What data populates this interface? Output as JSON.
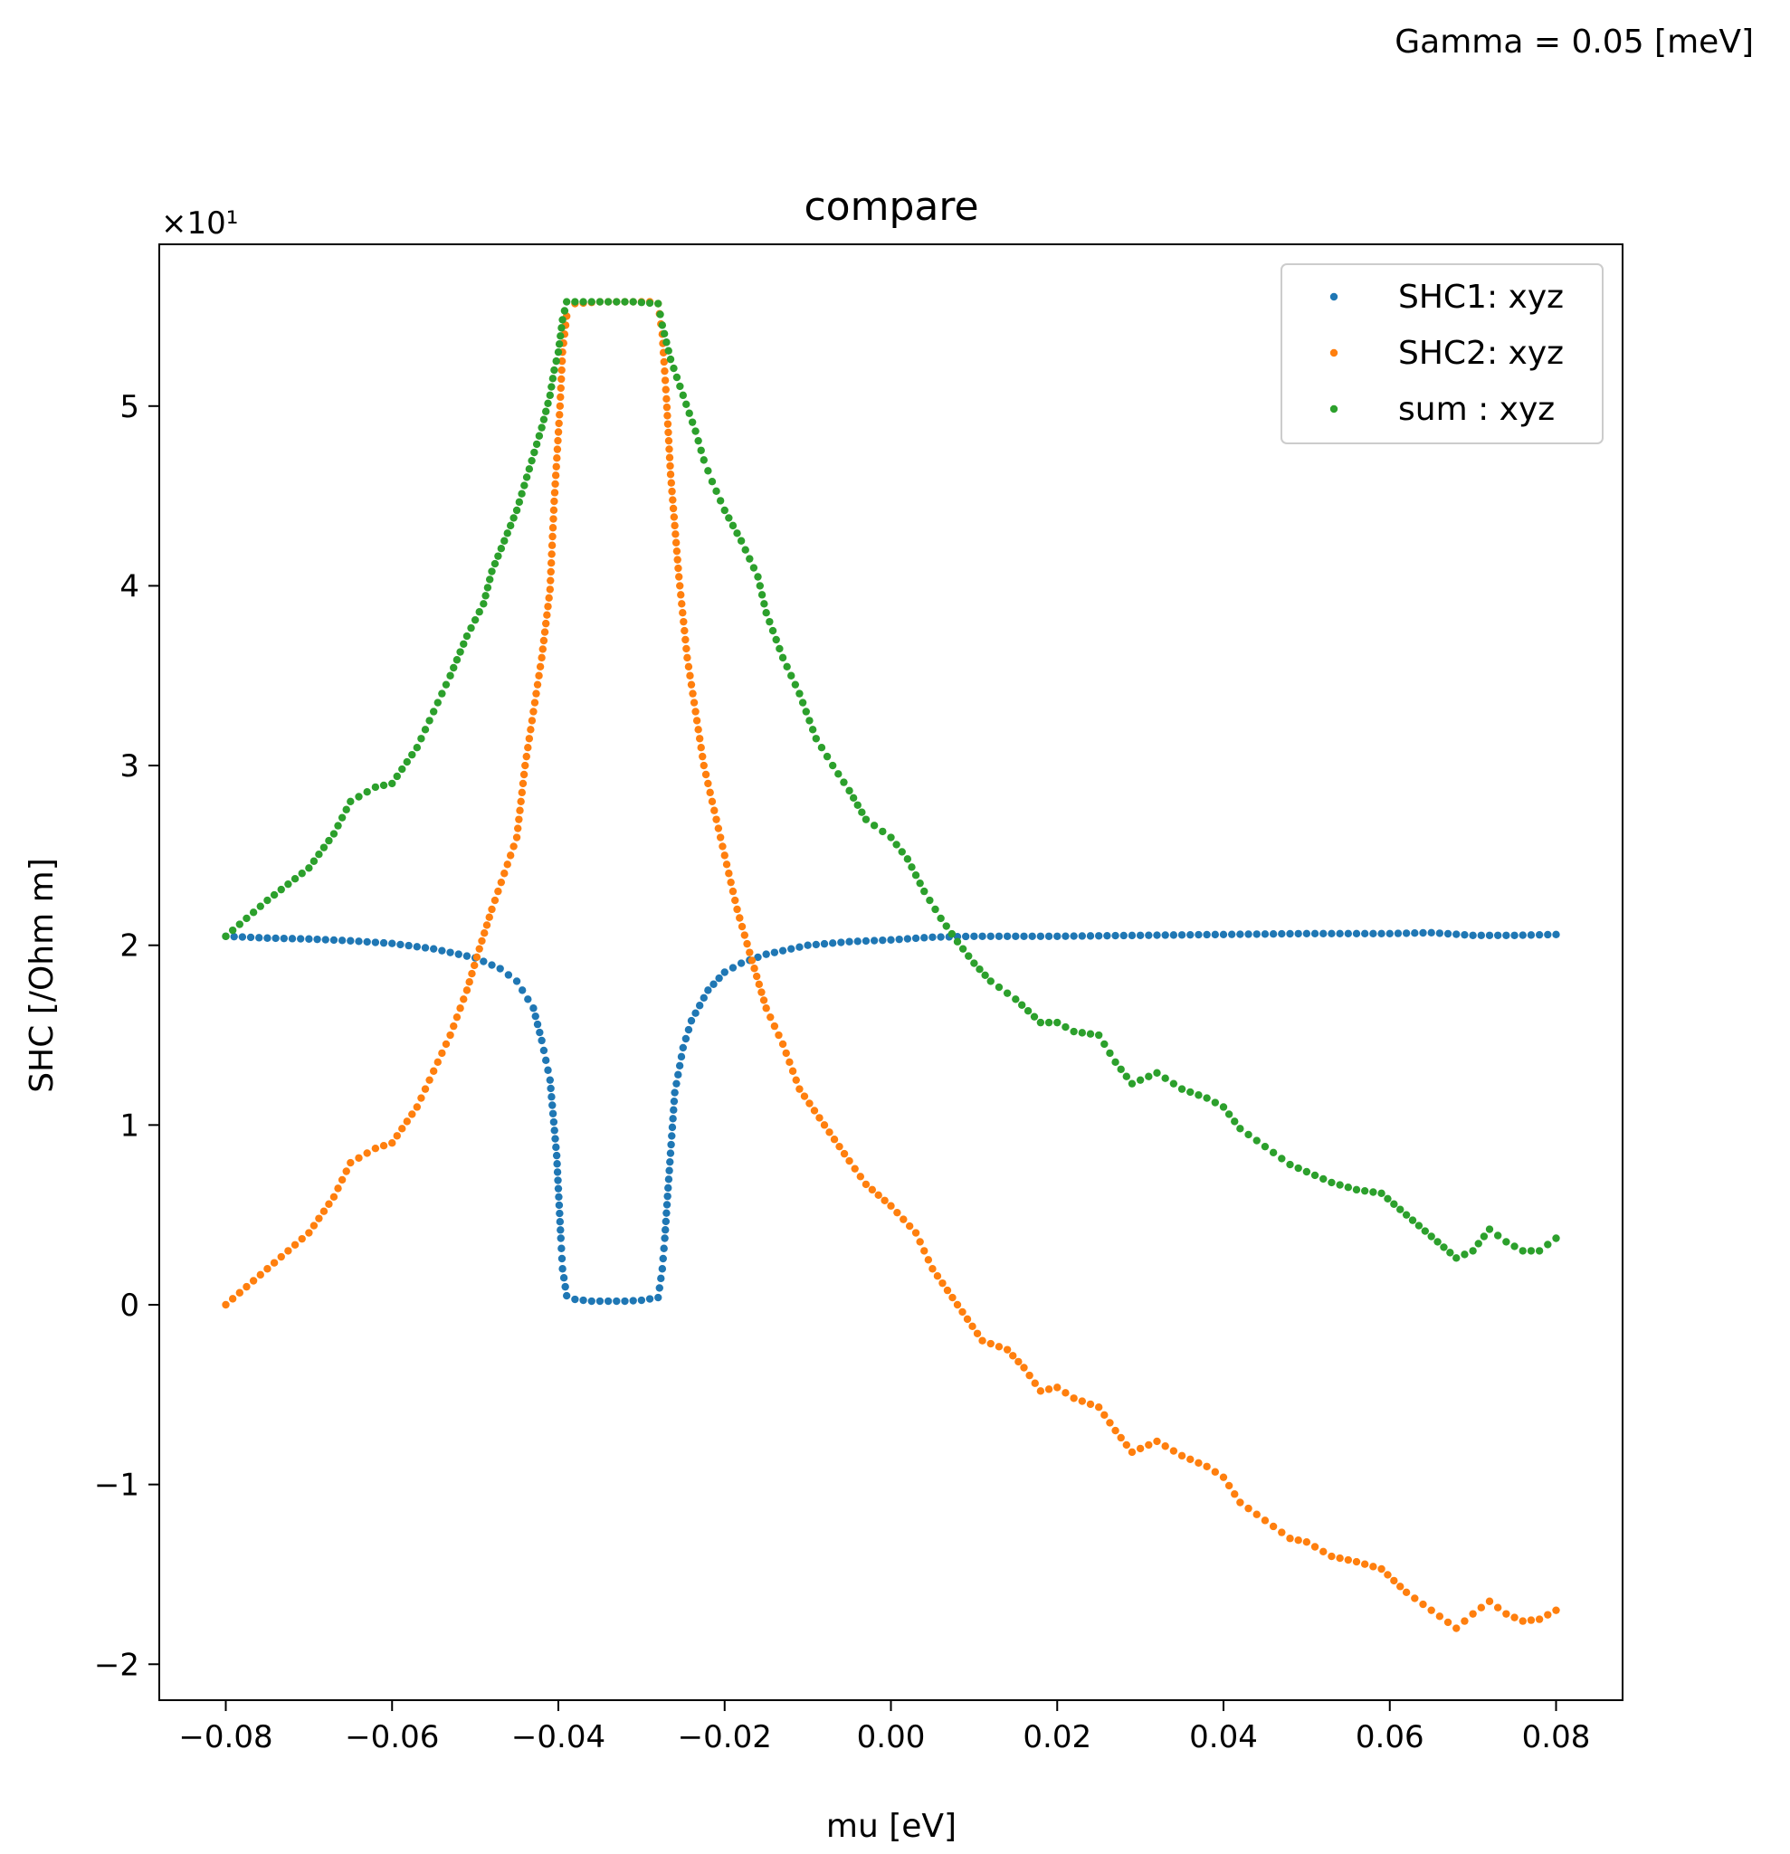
{
  "figure": {
    "annotation": "Gamma = 0.05 [meV]"
  },
  "chart_data": {
    "type": "scatter",
    "title": "compare",
    "xlabel": "mu [eV]",
    "ylabel": "SHC [/Ohm m]",
    "y_multiplier_label": "×10¹",
    "xlim": [
      -0.088,
      0.088
    ],
    "ylim": [
      -2.2,
      5.9
    ],
    "x_ticks": [
      -0.08,
      -0.06,
      -0.04,
      -0.02,
      0.0,
      0.02,
      0.04,
      0.06,
      0.08
    ],
    "x_tick_labels": [
      "−0.08",
      "−0.06",
      "−0.04",
      "−0.02",
      "0.00",
      "0.02",
      "0.04",
      "0.06",
      "0.08"
    ],
    "y_ticks": [
      -2,
      -1,
      0,
      1,
      2,
      3,
      4,
      5
    ],
    "y_tick_labels": [
      "−2",
      "−1",
      "0",
      "1",
      "2",
      "3",
      "4",
      "5"
    ],
    "grid": false,
    "legend": "top-right",
    "series": [
      {
        "name": "SHC1: xyz",
        "color": "#1f77b4",
        "points": [
          [
            -0.08,
            2.05
          ],
          [
            -0.075,
            2.04
          ],
          [
            -0.07,
            2.035
          ],
          [
            -0.065,
            2.025
          ],
          [
            -0.06,
            2.01
          ],
          [
            -0.055,
            1.98
          ],
          [
            -0.05,
            1.93
          ],
          [
            -0.047,
            1.87
          ],
          [
            -0.045,
            1.8
          ],
          [
            -0.043,
            1.65
          ],
          [
            -0.042,
            1.47
          ],
          [
            -0.041,
            1.25
          ],
          [
            -0.0402,
            0.83
          ],
          [
            -0.0397,
            0.37
          ],
          [
            -0.0395,
            0.2
          ],
          [
            -0.039,
            0.05
          ],
          [
            -0.038,
            0.03
          ],
          [
            -0.036,
            0.02
          ],
          [
            -0.034,
            0.02
          ],
          [
            -0.032,
            0.02
          ],
          [
            -0.03,
            0.025
          ],
          [
            -0.028,
            0.04
          ],
          [
            -0.0275,
            0.2
          ],
          [
            -0.0272,
            0.37
          ],
          [
            -0.0268,
            0.65
          ],
          [
            -0.026,
            1.18
          ],
          [
            -0.025,
            1.43
          ],
          [
            -0.024,
            1.58
          ],
          [
            -0.022,
            1.75
          ],
          [
            -0.02,
            1.85
          ],
          [
            -0.018,
            1.9
          ],
          [
            -0.015,
            1.95
          ],
          [
            -0.01,
            2.0
          ],
          [
            -0.005,
            2.02
          ],
          [
            0.0,
            2.03
          ],
          [
            0.005,
            2.045
          ],
          [
            0.01,
            2.05
          ],
          [
            0.02,
            2.05
          ],
          [
            0.03,
            2.055
          ],
          [
            0.04,
            2.06
          ],
          [
            0.05,
            2.065
          ],
          [
            0.06,
            2.065
          ],
          [
            0.065,
            2.07
          ],
          [
            0.07,
            2.055
          ],
          [
            0.075,
            2.055
          ],
          [
            0.08,
            2.06
          ]
        ]
      },
      {
        "name": "SHC2: xyz",
        "color": "#ff7f0e",
        "points": [
          [
            -0.08,
            0.0
          ],
          [
            -0.075,
            0.2
          ],
          [
            -0.07,
            0.4
          ],
          [
            -0.067,
            0.6
          ],
          [
            -0.065,
            0.79
          ],
          [
            -0.062,
            0.87
          ],
          [
            -0.06,
            0.9
          ],
          [
            -0.057,
            1.1
          ],
          [
            -0.055,
            1.3
          ],
          [
            -0.053,
            1.5
          ],
          [
            -0.051,
            1.75
          ],
          [
            -0.0495,
            1.98
          ],
          [
            -0.048,
            2.2
          ],
          [
            -0.0465,
            2.4
          ],
          [
            -0.045,
            2.6
          ],
          [
            -0.044,
            3.0
          ],
          [
            -0.043,
            3.3
          ],
          [
            -0.042,
            3.6
          ],
          [
            -0.041,
            3.98
          ],
          [
            -0.0405,
            4.47
          ],
          [
            -0.0398,
            5.0
          ],
          [
            -0.0395,
            5.3
          ],
          [
            -0.039,
            5.5
          ],
          [
            -0.038,
            5.57
          ],
          [
            -0.035,
            5.58
          ],
          [
            -0.032,
            5.58
          ],
          [
            -0.029,
            5.58
          ],
          [
            -0.028,
            5.57
          ],
          [
            -0.0275,
            5.4
          ],
          [
            -0.027,
            5.04
          ],
          [
            -0.0265,
            4.62
          ],
          [
            -0.0255,
            4.05
          ],
          [
            -0.0245,
            3.6
          ],
          [
            -0.0235,
            3.3
          ],
          [
            -0.0225,
            3.0
          ],
          [
            -0.0215,
            2.8
          ],
          [
            -0.0205,
            2.6
          ],
          [
            -0.0195,
            2.4
          ],
          [
            -0.0185,
            2.2
          ],
          [
            -0.017,
            1.96
          ],
          [
            -0.015,
            1.65
          ],
          [
            -0.013,
            1.45
          ],
          [
            -0.011,
            1.2
          ],
          [
            -0.008,
            1.0
          ],
          [
            -0.005,
            0.8
          ],
          [
            -0.003,
            0.67
          ],
          [
            0.0,
            0.55
          ],
          [
            0.003,
            0.4
          ],
          [
            0.005,
            0.2
          ],
          [
            0.008,
            0.0
          ],
          [
            0.011,
            -0.2
          ],
          [
            0.014,
            -0.25
          ],
          [
            0.016,
            -0.35
          ],
          [
            0.018,
            -0.48
          ],
          [
            0.02,
            -0.46
          ],
          [
            0.022,
            -0.52
          ],
          [
            0.025,
            -0.57
          ],
          [
            0.027,
            -0.7
          ],
          [
            0.029,
            -0.82
          ],
          [
            0.032,
            -0.76
          ],
          [
            0.035,
            -0.84
          ],
          [
            0.038,
            -0.9
          ],
          [
            0.04,
            -0.96
          ],
          [
            0.042,
            -1.1
          ],
          [
            0.045,
            -1.2
          ],
          [
            0.048,
            -1.3
          ],
          [
            0.05,
            -1.32
          ],
          [
            0.053,
            -1.4
          ],
          [
            0.056,
            -1.43
          ],
          [
            0.059,
            -1.47
          ],
          [
            0.062,
            -1.6
          ],
          [
            0.065,
            -1.7
          ],
          [
            0.068,
            -1.8
          ],
          [
            0.07,
            -1.72
          ],
          [
            0.072,
            -1.65
          ],
          [
            0.074,
            -1.72
          ],
          [
            0.076,
            -1.76
          ],
          [
            0.078,
            -1.75
          ],
          [
            0.08,
            -1.7
          ]
        ]
      },
      {
        "name": "sum : xyz",
        "color": "#2ca02c",
        "points": [
          [
            -0.08,
            2.05
          ],
          [
            -0.075,
            2.25
          ],
          [
            -0.07,
            2.43
          ],
          [
            -0.067,
            2.62
          ],
          [
            -0.065,
            2.8
          ],
          [
            -0.062,
            2.88
          ],
          [
            -0.06,
            2.9
          ],
          [
            -0.057,
            3.1
          ],
          [
            -0.055,
            3.3
          ],
          [
            -0.053,
            3.5
          ],
          [
            -0.051,
            3.72
          ],
          [
            -0.049,
            3.9
          ],
          [
            -0.048,
            4.08
          ],
          [
            -0.0465,
            4.25
          ],
          [
            -0.045,
            4.42
          ],
          [
            -0.0435,
            4.65
          ],
          [
            -0.042,
            4.88
          ],
          [
            -0.041,
            5.06
          ],
          [
            -0.0405,
            5.2
          ],
          [
            -0.04,
            5.3
          ],
          [
            -0.0395,
            5.48
          ],
          [
            -0.039,
            5.58
          ],
          [
            -0.037,
            5.58
          ],
          [
            -0.034,
            5.58
          ],
          [
            -0.031,
            5.58
          ],
          [
            -0.028,
            5.57
          ],
          [
            -0.0275,
            5.45
          ],
          [
            -0.0265,
            5.26
          ],
          [
            -0.025,
            5.06
          ],
          [
            -0.0235,
            4.86
          ],
          [
            -0.0225,
            4.7
          ],
          [
            -0.0215,
            4.58
          ],
          [
            -0.02,
            4.42
          ],
          [
            -0.018,
            4.25
          ],
          [
            -0.016,
            4.05
          ],
          [
            -0.015,
            3.85
          ],
          [
            -0.013,
            3.6
          ],
          [
            -0.011,
            3.4
          ],
          [
            -0.009,
            3.15
          ],
          [
            -0.007,
            3.0
          ],
          [
            -0.005,
            2.86
          ],
          [
            -0.003,
            2.7
          ],
          [
            0.0,
            2.6
          ],
          [
            0.002,
            2.48
          ],
          [
            0.004,
            2.3
          ],
          [
            0.006,
            2.15
          ],
          [
            0.008,
            2.02
          ],
          [
            0.01,
            1.9
          ],
          [
            0.012,
            1.8
          ],
          [
            0.015,
            1.7
          ],
          [
            0.018,
            1.57
          ],
          [
            0.02,
            1.57
          ],
          [
            0.022,
            1.52
          ],
          [
            0.025,
            1.5
          ],
          [
            0.027,
            1.35
          ],
          [
            0.029,
            1.23
          ],
          [
            0.032,
            1.29
          ],
          [
            0.035,
            1.2
          ],
          [
            0.038,
            1.15
          ],
          [
            0.04,
            1.1
          ],
          [
            0.042,
            0.98
          ],
          [
            0.045,
            0.88
          ],
          [
            0.048,
            0.78
          ],
          [
            0.05,
            0.74
          ],
          [
            0.053,
            0.68
          ],
          [
            0.056,
            0.64
          ],
          [
            0.059,
            0.62
          ],
          [
            0.062,
            0.5
          ],
          [
            0.065,
            0.38
          ],
          [
            0.068,
            0.26
          ],
          [
            0.07,
            0.3
          ],
          [
            0.072,
            0.42
          ],
          [
            0.074,
            0.35
          ],
          [
            0.076,
            0.3
          ],
          [
            0.078,
            0.3
          ],
          [
            0.08,
            0.37
          ]
        ]
      }
    ]
  }
}
